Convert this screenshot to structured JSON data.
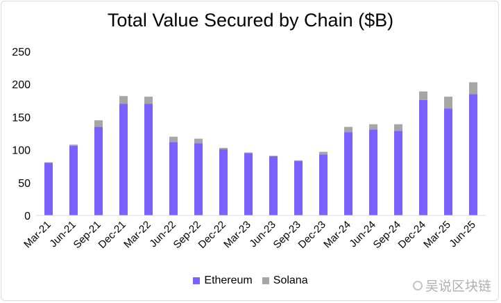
{
  "chart_data": {
    "type": "bar",
    "stacked": true,
    "title": "Total Value Secured by Chain ($B)",
    "xlabel": "",
    "ylabel": "",
    "ylim": [
      0,
      250
    ],
    "yticks": [
      0,
      50,
      100,
      150,
      200,
      250
    ],
    "grid": false,
    "legend": "bottom",
    "categories": [
      "Mar-21",
      "Jun-21",
      "Sep-21",
      "Dec-21",
      "Mar-22",
      "Jun-22",
      "Sep-22",
      "Dec-22",
      "Mar-23",
      "Jun-23",
      "Sep-23",
      "Dec-23",
      "Mar-24",
      "Jun-24",
      "Sep-24",
      "Dec-24",
      "Mar-25",
      "Jun-25"
    ],
    "series": [
      {
        "name": "Ethereum",
        "color": "#7b61ff",
        "values": [
          80,
          106,
          135,
          170,
          170,
          112,
          110,
          101,
          95,
          90,
          83,
          93,
          127,
          131,
          129,
          176,
          163,
          185
        ]
      },
      {
        "name": "Solana",
        "color": "#a6a6a6",
        "values": [
          1,
          2,
          10,
          12,
          11,
          8,
          7,
          2,
          1,
          1,
          1,
          4,
          8,
          8,
          10,
          13,
          18,
          18
        ]
      }
    ]
  },
  "watermark": {
    "text": "吴说区块链"
  }
}
